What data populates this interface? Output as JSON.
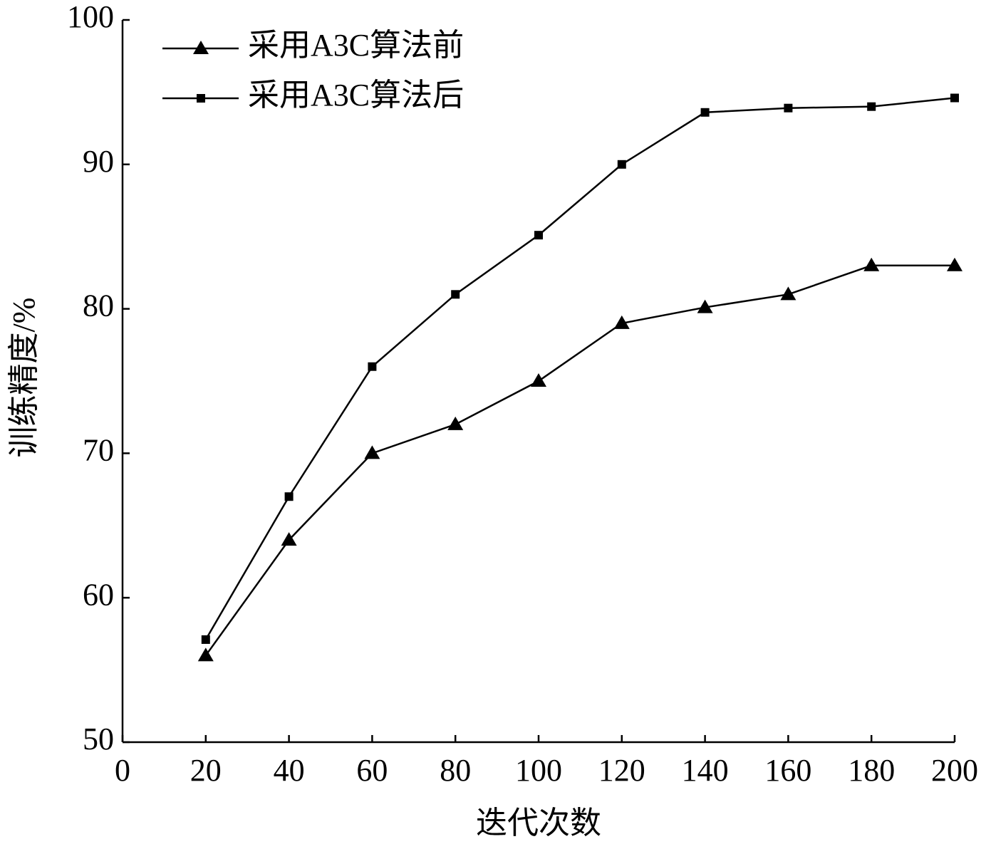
{
  "chart_data": {
    "type": "line",
    "x_label": "迭代次数",
    "y_label": "训练精度/%",
    "x": [
      20,
      40,
      60,
      80,
      100,
      120,
      140,
      160,
      180,
      200
    ],
    "series": [
      {
        "name": "采用A3C算法前",
        "color": "#000000",
        "marker": "triangle",
        "values": [
          56,
          64,
          70,
          72,
          75,
          79,
          80.1,
          81,
          83,
          83
        ]
      },
      {
        "name": "采用A3C算法后",
        "color": "#000000",
        "marker": "square",
        "values": [
          57.1,
          67,
          76,
          81,
          85.1,
          90,
          93.6,
          93.9,
          94,
          94.6
        ]
      }
    ],
    "xlim": [
      0,
      200
    ],
    "xticks": [
      0,
      20,
      40,
      60,
      80,
      100,
      120,
      140,
      160,
      180,
      200
    ],
    "ylim": [
      50,
      100
    ],
    "yticks": [
      50,
      60,
      70,
      80,
      90,
      100
    ],
    "grid": false,
    "legend": "upper-left"
  }
}
